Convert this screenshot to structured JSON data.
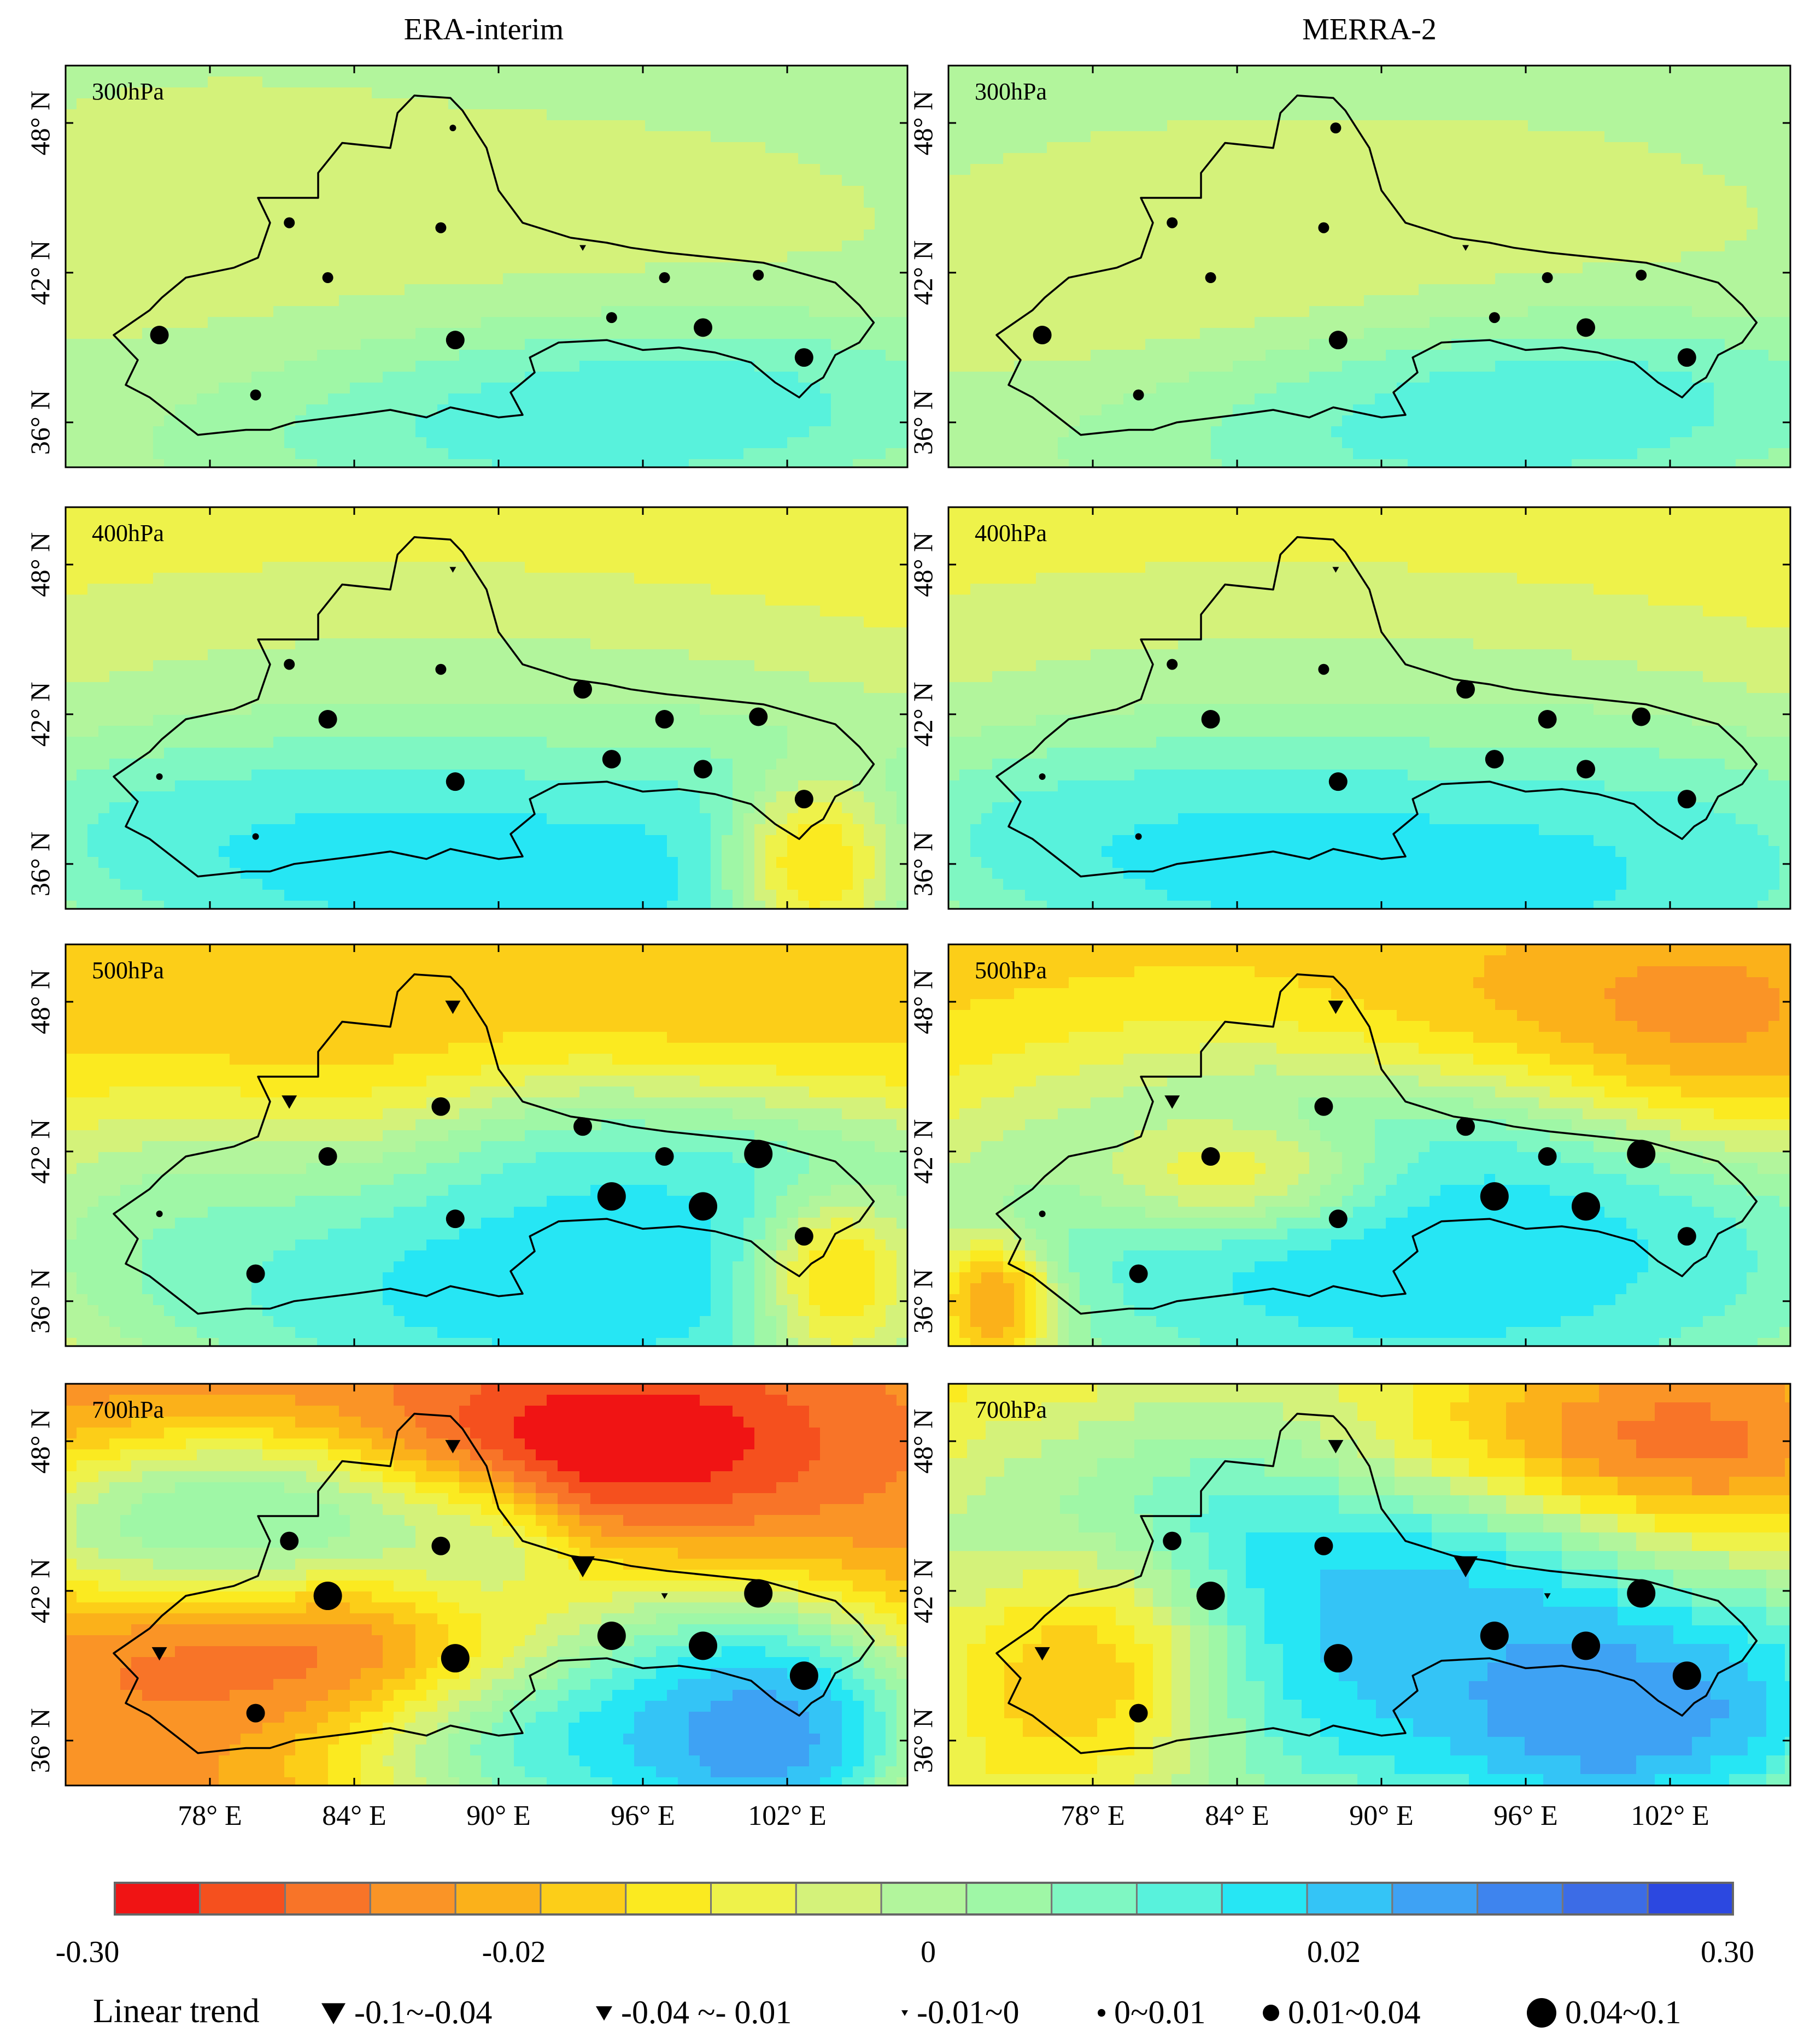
{
  "columns": [
    "ERA-interim",
    "MERRA-2"
  ],
  "levels": [
    "300hPa",
    "400hPa",
    "500hPa",
    "700hPa"
  ],
  "lat_ticks": [
    "36° N",
    "42° N",
    "48° N"
  ],
  "lon_ticks": [
    "78° E",
    "84° E",
    "90° E",
    "96° E",
    "102° E"
  ],
  "colorbar": {
    "colors": [
      "#f01414",
      "#f5501e",
      "#f87428",
      "#fa9426",
      "#fbb11a",
      "#fcce18",
      "#fbea20",
      "#eef24a",
      "#d4f27a",
      "#b2f59c",
      "#9ff7a6",
      "#7ff7c2",
      "#58f2dc",
      "#26e6f4",
      "#34c4f6",
      "#3ea2f4",
      "#3e84ee",
      "#3c6ce6",
      "#2c48e0"
    ],
    "labels": [
      "-0.30",
      "-0.02",
      "0",
      "0.02",
      "0.30"
    ]
  },
  "legend": {
    "title": "Linear trend",
    "items": [
      {
        "symbol": "triangle-large",
        "label": "-0.1~-0.04"
      },
      {
        "symbol": "triangle-medium",
        "label": "-0.04 ~- 0.01"
      },
      {
        "symbol": "triangle-small",
        "label": "-0.01~0"
      },
      {
        "symbol": "circle-small",
        "label": "0~0.01"
      },
      {
        "symbol": "circle-medium",
        "label": "0.01~0.04"
      },
      {
        "symbol": "circle-large",
        "label": "0.04~0.1"
      }
    ]
  },
  "stations": [
    {
      "lon": 88.1,
      "lat": 47.8
    },
    {
      "lon": 81.3,
      "lat": 44.0
    },
    {
      "lon": 87.6,
      "lat": 43.8
    },
    {
      "lon": 93.5,
      "lat": 43.0
    },
    {
      "lon": 82.9,
      "lat": 41.8
    },
    {
      "lon": 96.9,
      "lat": 41.8
    },
    {
      "lon": 100.8,
      "lat": 41.9
    },
    {
      "lon": 75.9,
      "lat": 39.5
    },
    {
      "lon": 88.2,
      "lat": 39.3
    },
    {
      "lon": 94.7,
      "lat": 40.2
    },
    {
      "lon": 98.5,
      "lat": 39.8
    },
    {
      "lon": 102.7,
      "lat": 38.6
    },
    {
      "lon": 79.9,
      "lat": 37.1
    },
    {
      "lon": 97.0,
      "lat": 41.6
    }
  ],
  "trend_classes": {
    "ERA-interim": {
      "300hPa": [
        "c1",
        "c2",
        "c2",
        "t3",
        "c2",
        "c2",
        "c2",
        "c3",
        "c3",
        "c2",
        "c3",
        "c3",
        "c2",
        null
      ],
      "400hPa": [
        "t3",
        "c2",
        "c2",
        "c3",
        "c3",
        "c3",
        "c3",
        "c1",
        "c3",
        "c3",
        "c3",
        "c3",
        "c1",
        null
      ],
      "500hPa": [
        "t2",
        "t2",
        "c3",
        "c3",
        "c3",
        "c3",
        "c4",
        "c1",
        "c3",
        "c4",
        "c4",
        "c3",
        "c3",
        null
      ],
      "700hPa": [
        "t2",
        "c3",
        "c3",
        "t1",
        "c4",
        "t3",
        "c4",
        "t2",
        "c4",
        "c4",
        "c4",
        "c4",
        "c3",
        null
      ]
    },
    "MERRA-2": {
      "300hPa": [
        "c2",
        "c2",
        "c2",
        "t3",
        "c2",
        "c2",
        "c2",
        "c3",
        "c3",
        "c2",
        "c3",
        "c3",
        "c2",
        null
      ],
      "400hPa": [
        "t3",
        "c2",
        "c2",
        "c3",
        "c3",
        "c3",
        "c3",
        "c1",
        "c3",
        "c3",
        "c3",
        "c3",
        "c1",
        null
      ],
      "500hPa": [
        "t2",
        "t2",
        "c3",
        "c3",
        "c3",
        "c3",
        "c4",
        "c1",
        "c3",
        "c4",
        "c4",
        "c3",
        "c3",
        null
      ],
      "700hPa": [
        "t2",
        "c3",
        "c3",
        "t1",
        "c4",
        "t3",
        "c4",
        "t2",
        "c4",
        "c4",
        "c4",
        "c4",
        "c3",
        null
      ]
    }
  },
  "field_regions": {
    "ERA-interim": {
      "300hPa": [
        [
          90,
          44,
          15,
          4,
          8,
          0.5
        ],
        [
          80,
          40,
          12,
          4,
          8,
          0.35
        ],
        [
          92,
          37,
          12,
          3,
          14,
          0.8
        ],
        [
          78,
          45,
          8,
          4,
          8,
          0.2
        ]
      ],
      "400hPa": [
        [
          92,
          36,
          16,
          5,
          15,
          1.0
        ],
        [
          85,
          42,
          14,
          4,
          9,
          0.6
        ],
        [
          103,
          36,
          3,
          3,
          3,
          -2.0
        ],
        [
          82,
          38,
          10,
          3,
          14,
          0.5
        ]
      ],
      "500hPa": [
        [
          93,
          37,
          16,
          5,
          16,
          1.6
        ],
        [
          80,
          46,
          10,
          5,
          6,
          -1.4
        ],
        [
          100,
          47,
          10,
          4,
          6,
          -1.0
        ],
        [
          96,
          42,
          9,
          3,
          14,
          1.2
        ],
        [
          104,
          37,
          3,
          3,
          3,
          -2.0
        ],
        [
          78,
          41,
          6,
          4,
          12,
          0.6
        ]
      ],
      "700hPa": [
        [
          95,
          48,
          8,
          3,
          2,
          -3.0
        ],
        [
          82,
          40,
          10,
          3,
          3,
          -2.0
        ],
        [
          96,
          37,
          9,
          4,
          17,
          2.0
        ],
        [
          80,
          44,
          8,
          3,
          14,
          1.4
        ],
        [
          101,
          36,
          4,
          3,
          18,
          1.5
        ],
        [
          89,
          43,
          3,
          3,
          10,
          0.7
        ]
      ]
    },
    "MERRA-2": {
      "300hPa": [
        [
          90,
          44,
          15,
          4,
          8,
          0.45
        ],
        [
          82,
          40,
          10,
          4,
          7,
          0.45
        ],
        [
          92,
          37,
          12,
          3,
          14,
          0.8
        ]
      ],
      "400hPa": [
        [
          92,
          36,
          16,
          5,
          15,
          1.0
        ],
        [
          85,
          42,
          14,
          4,
          9,
          0.6
        ],
        [
          82,
          38,
          10,
          3,
          14,
          0.5
        ]
      ],
      "500hPa": [
        [
          92,
          38,
          16,
          6,
          16,
          1.8
        ],
        [
          84,
          41,
          5,
          2,
          5,
          -1.2
        ],
        [
          98,
          48,
          9,
          3,
          5,
          -1.0
        ],
        [
          104,
          47,
          6,
          4,
          4,
          -1.0
        ],
        [
          74,
          36,
          2,
          2,
          3,
          -2.0
        ]
      ],
      "700hPa": [
        [
          92,
          41,
          16,
          7,
          17,
          2.2
        ],
        [
          99,
          48,
          9,
          3,
          3,
          -2.0
        ],
        [
          104,
          47,
          6,
          4,
          4,
          -1.5
        ],
        [
          78,
          39,
          5,
          4,
          3,
          -2.0
        ],
        [
          100,
          37,
          6,
          3,
          18,
          1.5
        ]
      ]
    }
  },
  "field_base": {
    "ERA-interim": {
      "300hPa": 9,
      "400hPa": 7,
      "500hPa": 5,
      "700hPa": 3
    },
    "MERRA-2": {
      "300hPa": 9,
      "400hPa": 7,
      "500hPa": 5,
      "700hPa": 5
    }
  },
  "boundary": [
    [
      75.5,
      40.5
    ],
    [
      74.0,
      39.5
    ],
    [
      75.0,
      38.5
    ],
    [
      74.5,
      37.5
    ],
    [
      75.5,
      37.0
    ],
    [
      77.5,
      35.5
    ],
    [
      79.5,
      35.7
    ],
    [
      80.5,
      35.7
    ],
    [
      81.5,
      36.0
    ],
    [
      84.0,
      36.3
    ],
    [
      85.5,
      36.5
    ],
    [
      87.0,
      36.2
    ],
    [
      88.0,
      36.6
    ],
    [
      90.0,
      36.2
    ],
    [
      91.0,
      36.3
    ],
    [
      90.5,
      37.2
    ],
    [
      91.5,
      38.0
    ],
    [
      91.3,
      38.6
    ],
    [
      92.5,
      39.2
    ],
    [
      94.5,
      39.3
    ],
    [
      96.0,
      38.9
    ],
    [
      97.5,
      39.0
    ],
    [
      99.0,
      38.8
    ],
    [
      100.5,
      38.4
    ],
    [
      101.5,
      37.6
    ],
    [
      102.5,
      37.0
    ],
    [
      103.0,
      37.5
    ],
    [
      103.5,
      37.8
    ],
    [
      104.0,
      38.7
    ],
    [
      105.0,
      39.2
    ],
    [
      105.6,
      40.0
    ],
    [
      105.0,
      40.7
    ],
    [
      104.0,
      41.6
    ],
    [
      102.5,
      42.0
    ],
    [
      101.0,
      42.4
    ],
    [
      99.0,
      42.6
    ],
    [
      97.0,
      42.8
    ],
    [
      95.5,
      43.0
    ],
    [
      94.5,
      43.2
    ],
    [
      93.0,
      43.4
    ],
    [
      91.0,
      44.0
    ],
    [
      90.0,
      45.3
    ],
    [
      89.5,
      47.0
    ],
    [
      88.5,
      48.5
    ],
    [
      88.0,
      49.0
    ],
    [
      86.5,
      49.1
    ],
    [
      85.8,
      48.4
    ],
    [
      85.5,
      47.0
    ],
    [
      83.5,
      47.2
    ],
    [
      82.5,
      46.0
    ],
    [
      82.5,
      45.0
    ],
    [
      80.0,
      45.0
    ],
    [
      80.5,
      44.0
    ],
    [
      80.0,
      42.6
    ],
    [
      79.0,
      42.2
    ],
    [
      77.0,
      41.8
    ],
    [
      76.0,
      41.0
    ]
  ]
}
